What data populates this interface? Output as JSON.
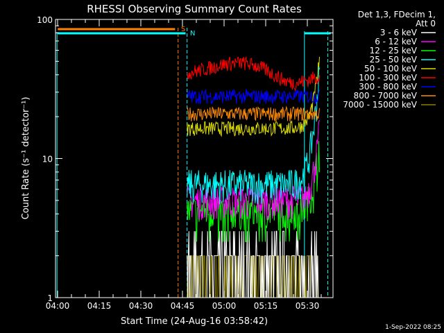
{
  "chart_data": {
    "type": "line",
    "title": "RHESSI Observing Summary Count Rates",
    "xlabel": "Start Time (24-Aug-16 03:58:42)",
    "ylabel": "Count Rate (s⁻¹ detector⁻¹)",
    "y_scale": "log",
    "ylim": [
      1,
      100
    ],
    "xlim_minutes": [
      -1.3,
      35.6
    ],
    "x_ticks": [
      "04:00",
      "04:15",
      "04:30",
      "04:45",
      "05:00",
      "05:15",
      "05:30"
    ],
    "y_ticks": [
      "1",
      "10",
      "100"
    ],
    "legend_header": [
      "Det 1,3, FDecim 1,",
      "Att 0"
    ],
    "legend_position": "top-right",
    "series": [
      {
        "name": "3 - 6 keV",
        "color": "#ffffff",
        "level": 1.5
      },
      {
        "name": "6 - 12 keV",
        "color": "#ff00ff",
        "level": 5.0
      },
      {
        "name": "12 - 25 keV",
        "color": "#00ff00",
        "level": 4.2
      },
      {
        "name": "25 - 50 keV",
        "color": "#00ffff",
        "level": 6.5
      },
      {
        "name": "50 - 100 keV",
        "color": "#dddd00",
        "level": 16.5
      },
      {
        "name": "100 - 300 keV",
        "color": "#ff0000",
        "level": 40
      },
      {
        "name": "300 - 800 keV",
        "color": "#0000ff",
        "level": 28
      },
      {
        "name": "800 - 7000 keV",
        "color": "#ff8c00",
        "level": 21
      },
      {
        "name": "7000 - 15000 keV",
        "color": "#8b8000",
        "level": 1.3
      }
    ],
    "flags": [
      {
        "label": "S",
        "color": "#ff7f00"
      },
      {
        "label": "N",
        "color": "#00ffff"
      }
    ],
    "footer_date": "1-Sep-2022 08:25"
  }
}
